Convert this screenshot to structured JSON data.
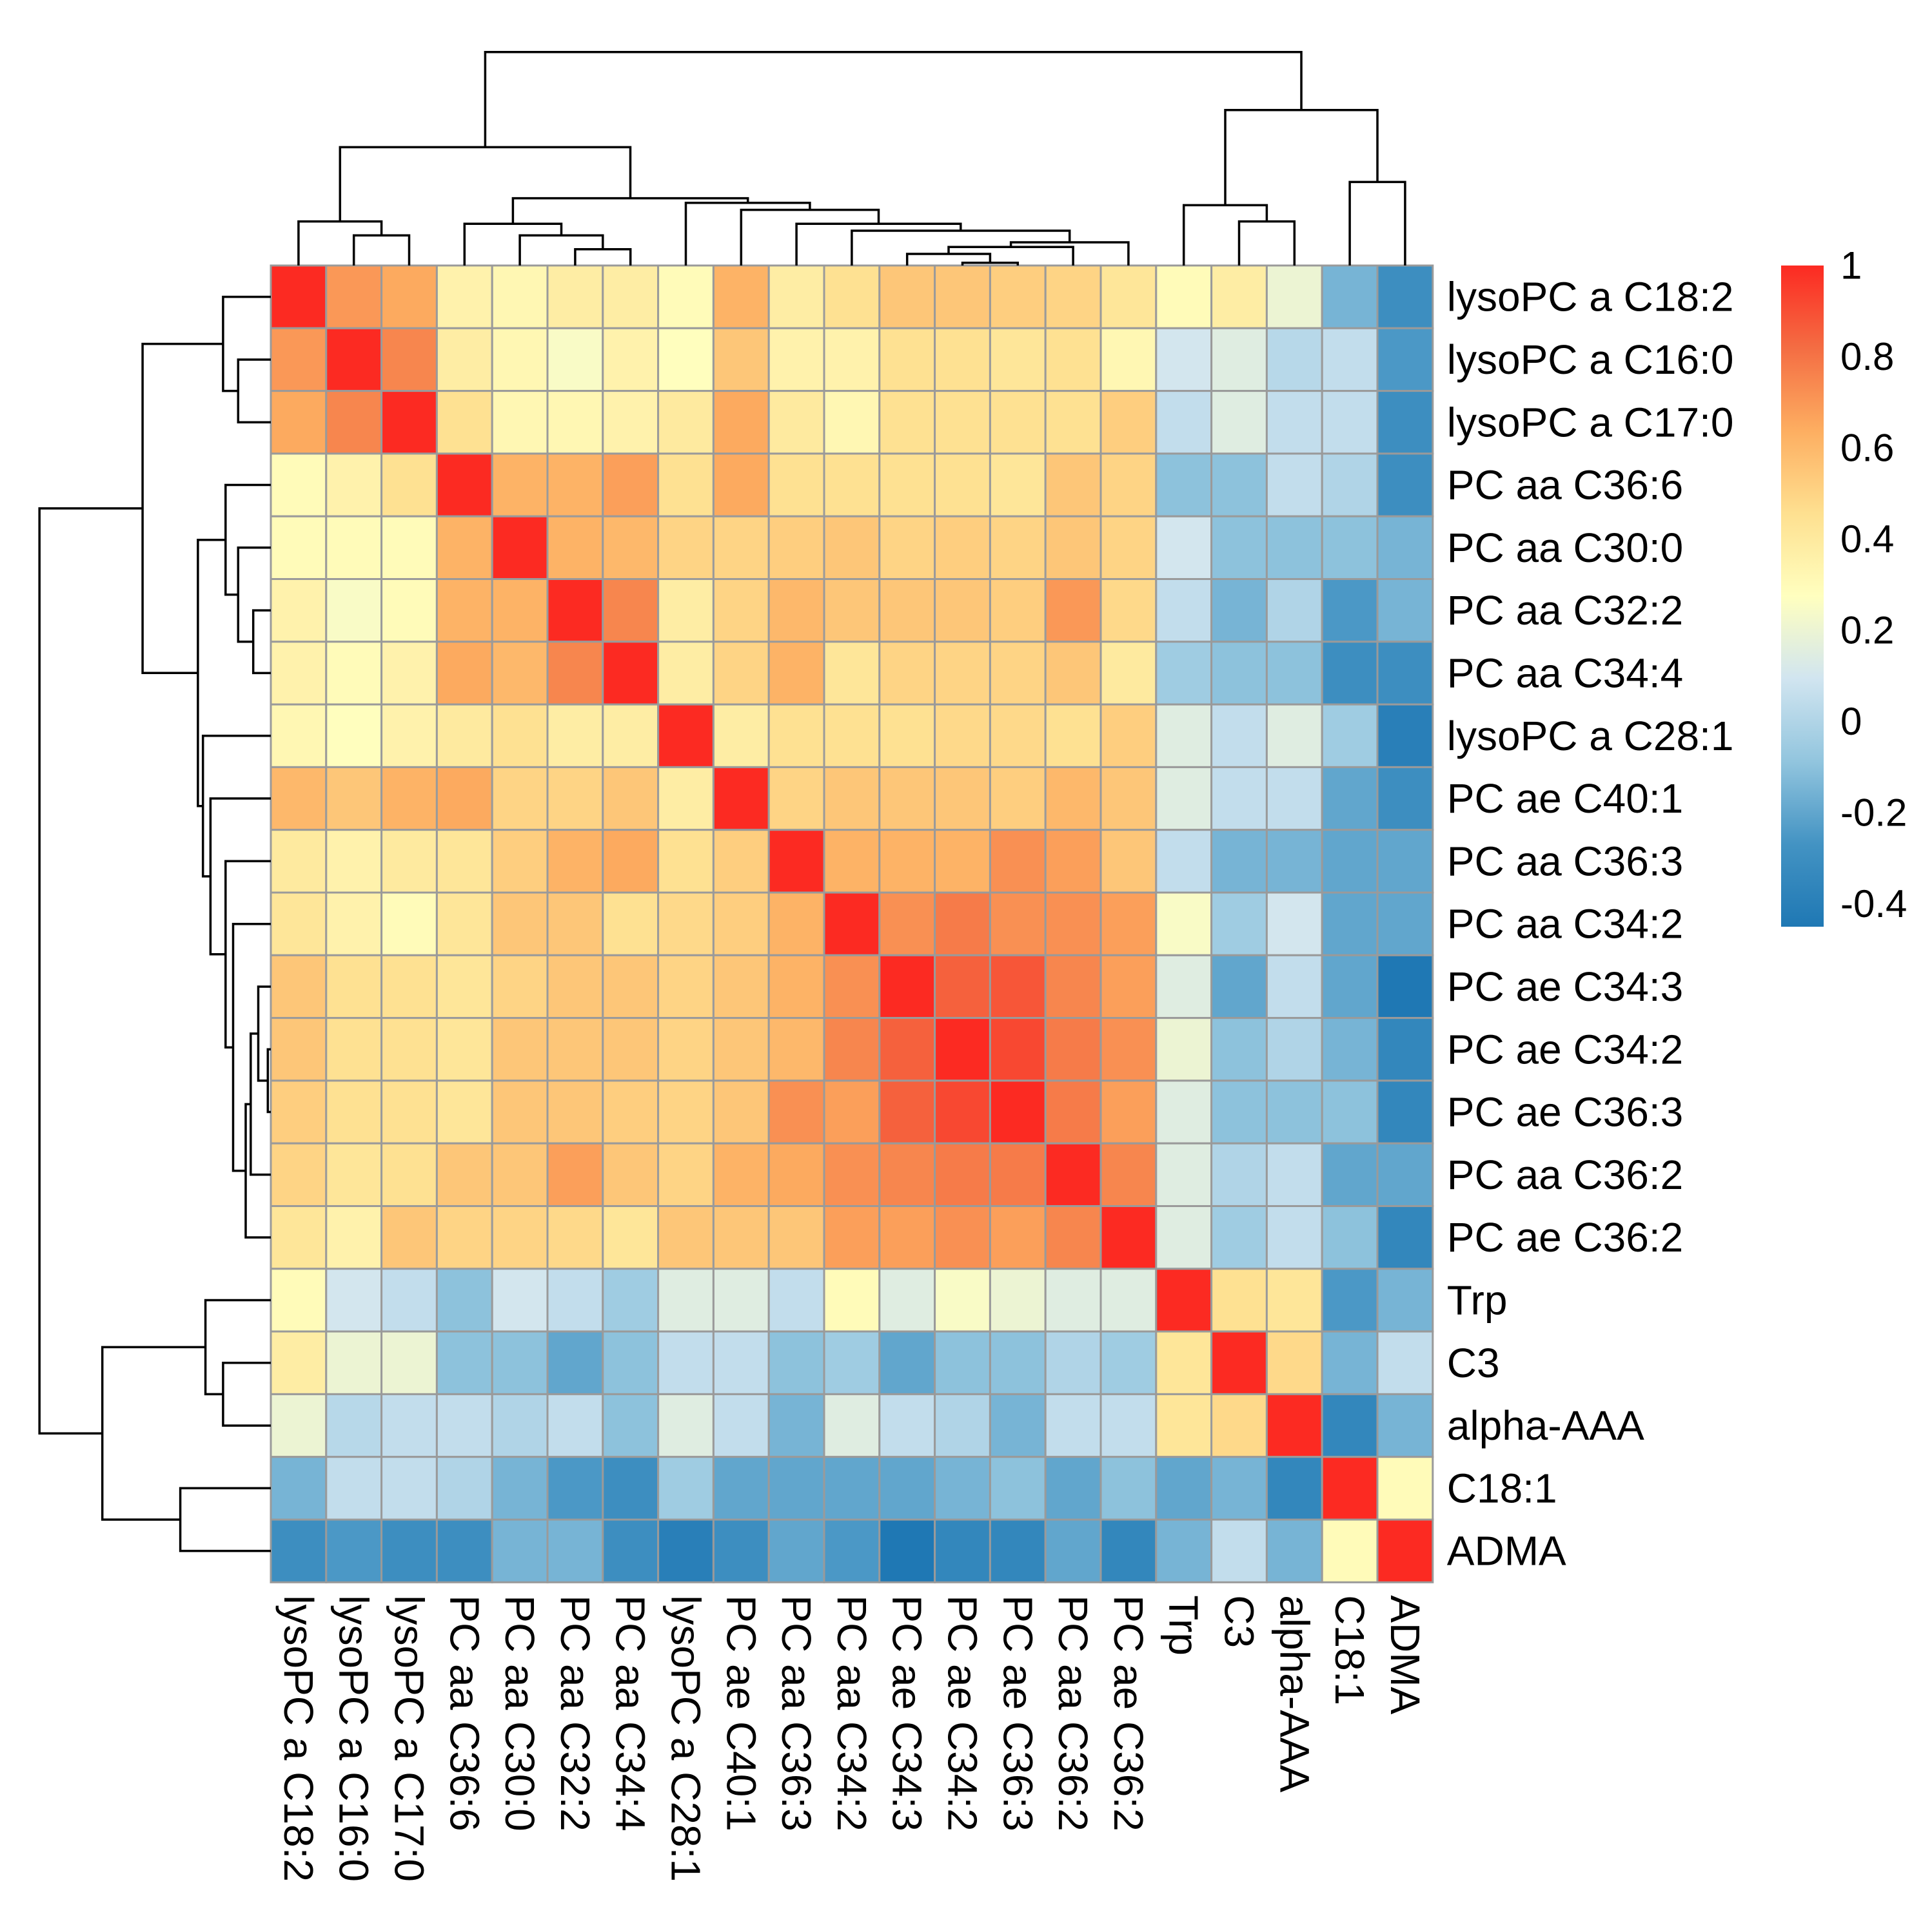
{
  "chart_data": {
    "type": "heatmap",
    "title": "",
    "labels": [
      "lysoPC a C18:2",
      "lysoPC a C16:0",
      "lysoPC a C17:0",
      "PC aa C36:6",
      "PC aa C30:0",
      "PC aa C32:2",
      "PC aa C34:4",
      "lysoPC a C28:1",
      "PC ae C40:1",
      "PC aa C36:3",
      "PC aa C34:2",
      "PC ae C34:3",
      "PC ae C34:2",
      "PC ae C36:3",
      "PC aa C36:2",
      "PC ae C36:2",
      "Trp",
      "C3",
      "alpha-AAA",
      "C18:1",
      "ADMA"
    ],
    "values": [
      [
        1.0,
        0.7,
        0.65,
        0.35,
        0.32,
        0.38,
        0.38,
        0.3,
        0.62,
        0.38,
        0.45,
        0.55,
        0.55,
        0.52,
        0.5,
        0.42,
        0.3,
        0.38,
        0.2,
        -0.15,
        -0.3
      ],
      [
        0.7,
        1.0,
        0.75,
        0.38,
        0.32,
        0.25,
        0.35,
        0.28,
        0.55,
        0.35,
        0.35,
        0.45,
        0.45,
        0.42,
        0.45,
        0.32,
        0.1,
        0.15,
        0.02,
        0.05,
        -0.25
      ],
      [
        0.65,
        0.75,
        1.0,
        0.45,
        0.32,
        0.32,
        0.35,
        0.4,
        0.65,
        0.4,
        0.32,
        0.45,
        0.45,
        0.45,
        0.45,
        0.52,
        0.05,
        0.15,
        0.05,
        0.05,
        -0.3
      ],
      [
        0.3,
        0.35,
        0.45,
        1.0,
        0.62,
        0.62,
        0.68,
        0.45,
        0.65,
        0.45,
        0.45,
        0.45,
        0.45,
        0.42,
        0.55,
        0.5,
        -0.1,
        -0.1,
        0.05,
        0.0,
        -0.3
      ],
      [
        0.3,
        0.3,
        0.3,
        0.62,
        1.0,
        0.62,
        0.6,
        0.5,
        0.5,
        0.52,
        0.55,
        0.5,
        0.52,
        0.5,
        0.55,
        0.5,
        0.1,
        -0.1,
        -0.1,
        -0.1,
        -0.15
      ],
      [
        0.35,
        0.25,
        0.3,
        0.62,
        0.62,
        1.0,
        0.75,
        0.38,
        0.5,
        0.6,
        0.55,
        0.55,
        0.55,
        0.52,
        0.7,
        0.48,
        0.05,
        -0.15,
        0.0,
        -0.25,
        -0.15
      ],
      [
        0.35,
        0.3,
        0.35,
        0.65,
        0.6,
        0.75,
        1.0,
        0.38,
        0.5,
        0.62,
        0.42,
        0.5,
        0.5,
        0.5,
        0.55,
        0.4,
        -0.05,
        -0.1,
        -0.1,
        -0.3,
        -0.3
      ],
      [
        0.32,
        0.28,
        0.35,
        0.4,
        0.45,
        0.38,
        0.38,
        1.0,
        0.38,
        0.45,
        0.45,
        0.45,
        0.48,
        0.48,
        0.45,
        0.52,
        0.15,
        0.05,
        0.15,
        -0.05,
        -0.4
      ],
      [
        0.6,
        0.55,
        0.62,
        0.65,
        0.5,
        0.5,
        0.55,
        0.38,
        1.0,
        0.5,
        0.55,
        0.55,
        0.55,
        0.52,
        0.6,
        0.55,
        0.15,
        0.05,
        0.05,
        -0.2,
        -0.3
      ],
      [
        0.4,
        0.35,
        0.4,
        0.42,
        0.52,
        0.62,
        0.65,
        0.45,
        0.52,
        1.0,
        0.62,
        0.62,
        0.62,
        0.72,
        0.68,
        0.55,
        0.05,
        -0.15,
        -0.15,
        -0.2,
        -0.2
      ],
      [
        0.42,
        0.35,
        0.3,
        0.42,
        0.55,
        0.55,
        0.45,
        0.48,
        0.52,
        0.62,
        1.0,
        0.72,
        0.78,
        0.72,
        0.72,
        0.68,
        0.25,
        -0.05,
        0.1,
        -0.2,
        -0.2
      ],
      [
        0.55,
        0.45,
        0.45,
        0.42,
        0.5,
        0.55,
        0.55,
        0.5,
        0.55,
        0.62,
        0.72,
        1.0,
        0.85,
        0.88,
        0.75,
        0.68,
        0.15,
        -0.2,
        0.05,
        -0.2,
        -0.45
      ],
      [
        0.55,
        0.45,
        0.45,
        0.42,
        0.55,
        0.55,
        0.55,
        0.5,
        0.55,
        0.6,
        0.75,
        0.85,
        1.0,
        0.92,
        0.78,
        0.72,
        0.2,
        -0.1,
        0.0,
        -0.15,
        -0.35
      ],
      [
        0.52,
        0.45,
        0.45,
        0.42,
        0.55,
        0.55,
        0.52,
        0.5,
        0.55,
        0.72,
        0.68,
        0.85,
        0.92,
        1.0,
        0.78,
        0.68,
        0.15,
        -0.1,
        -0.1,
        -0.1,
        -0.35
      ],
      [
        0.5,
        0.42,
        0.45,
        0.55,
        0.55,
        0.68,
        0.55,
        0.5,
        0.62,
        0.65,
        0.72,
        0.75,
        0.78,
        0.78,
        1.0,
        0.75,
        0.15,
        0.0,
        0.05,
        -0.2,
        -0.2
      ],
      [
        0.42,
        0.35,
        0.55,
        0.5,
        0.5,
        0.48,
        0.42,
        0.55,
        0.55,
        0.55,
        0.68,
        0.68,
        0.72,
        0.68,
        0.75,
        1.0,
        0.15,
        -0.05,
        0.05,
        -0.1,
        -0.35
      ],
      [
        0.3,
        0.1,
        0.05,
        -0.1,
        0.1,
        0.05,
        -0.05,
        0.15,
        0.15,
        0.05,
        0.3,
        0.15,
        0.25,
        0.2,
        0.15,
        0.15,
        1.0,
        0.45,
        0.42,
        -0.25,
        -0.15
      ],
      [
        0.38,
        0.2,
        0.2,
        -0.1,
        -0.1,
        -0.2,
        -0.1,
        0.05,
        0.05,
        -0.1,
        -0.05,
        -0.2,
        -0.1,
        -0.1,
        0.0,
        -0.05,
        0.42,
        1.0,
        0.48,
        -0.15,
        0.05
      ],
      [
        0.2,
        0.02,
        0.05,
        0.05,
        0.0,
        0.05,
        -0.1,
        0.15,
        0.05,
        -0.15,
        0.15,
        0.05,
        0.0,
        -0.15,
        0.05,
        0.05,
        0.42,
        0.48,
        1.0,
        -0.35,
        -0.15
      ],
      [
        -0.15,
        0.05,
        0.05,
        0.0,
        -0.15,
        -0.25,
        -0.3,
        -0.05,
        -0.2,
        -0.2,
        -0.2,
        -0.2,
        -0.15,
        -0.1,
        -0.2,
        -0.1,
        -0.2,
        -0.15,
        -0.35,
        1.0,
        0.3
      ],
      [
        -0.3,
        -0.25,
        -0.3,
        -0.3,
        -0.15,
        -0.15,
        -0.3,
        -0.4,
        -0.3,
        -0.2,
        -0.25,
        -0.45,
        -0.35,
        -0.35,
        -0.2,
        -0.35,
        -0.15,
        0.05,
        -0.15,
        0.3,
        1.0
      ]
    ],
    "color_scale": {
      "range": [
        -0.45,
        1
      ],
      "ticks": [
        "1",
        "0.8",
        "0.6",
        "0.4",
        "0.2",
        "0",
        "-0.2",
        "-0.4"
      ],
      "tick_values": [
        1,
        0.8,
        0.6,
        0.4,
        0.2,
        0,
        -0.2,
        -0.4
      ],
      "colors": [
        "#1f78b4",
        "#4393c3",
        "#92c5de",
        "#d1e5f0",
        "#ffffbf",
        "#fee090",
        "#fdae61",
        "#f46d43",
        "#fc2a22"
      ]
    },
    "row_labels_side": "right",
    "column_labels_side": "bottom",
    "dendrograms": [
      "top",
      "left"
    ],
    "legend_position": "right"
  }
}
